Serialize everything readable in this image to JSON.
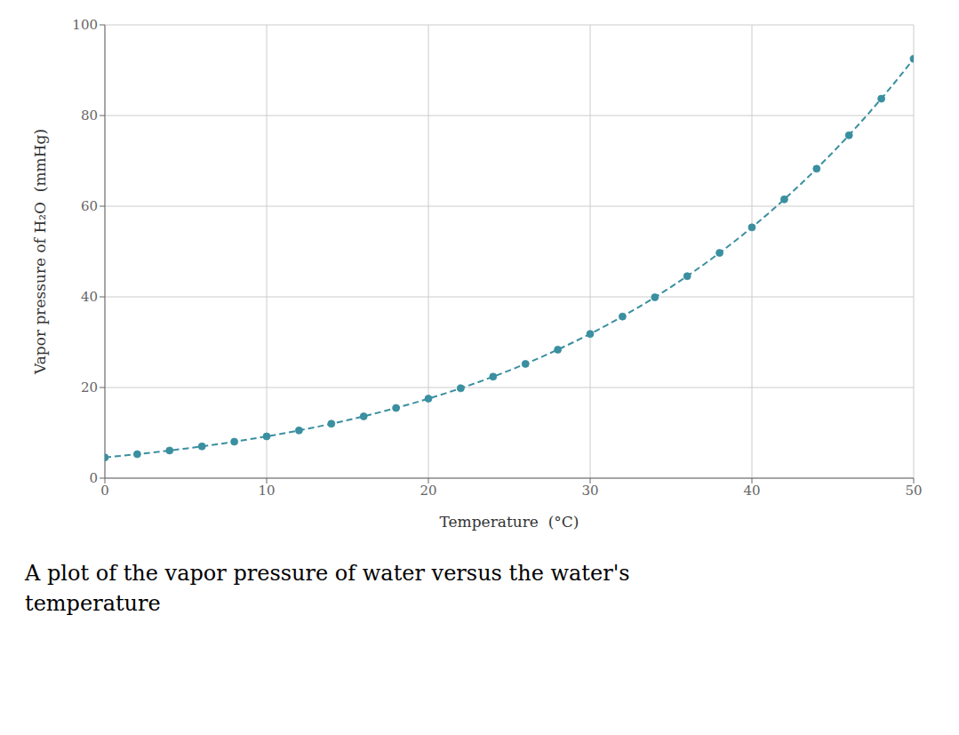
{
  "chart_data": {
    "type": "line",
    "caption": [
      "A plot of the vapor pressure of water versus the water's",
      "temperature"
    ],
    "x_label": "Temperature  (°C)",
    "y_label": "Vapor pressure of H₂O  (mmHg)",
    "x": [
      0,
      1,
      2,
      3,
      4,
      5,
      6,
      7,
      8,
      9,
      10,
      11,
      12,
      13,
      14,
      15,
      16,
      17,
      18,
      19,
      20,
      21,
      22,
      23,
      24,
      25,
      26,
      27,
      28,
      29,
      30,
      31,
      32,
      33,
      34,
      35,
      36,
      37,
      38,
      39,
      40,
      41,
      42,
      43,
      44,
      45,
      46,
      47,
      48,
      49,
      50
    ],
    "values": [
      4.58,
      4.93,
      5.29,
      5.69,
      6.1,
      6.54,
      7.01,
      7.51,
      8.04,
      8.61,
      9.21,
      9.84,
      10.52,
      11.23,
      12.0,
      12.79,
      13.63,
      14.53,
      15.48,
      16.48,
      17.54,
      18.65,
      19.83,
      21.07,
      22.38,
      23.76,
      25.21,
      26.74,
      28.35,
      30.04,
      31.82,
      33.7,
      35.66,
      37.73,
      39.9,
      42.18,
      44.56,
      47.07,
      49.69,
      52.44,
      55.32,
      58.34,
      61.5,
      64.8,
      68.26,
      71.88,
      75.65,
      79.6,
      83.71,
      88.02,
      92.51
    ],
    "color": "#3a8fa0",
    "marker": "circle",
    "line_style": "dashed",
    "xlim": [
      0,
      50
    ],
    "ylim": [
      0,
      100
    ],
    "xticks": [
      0,
      10,
      20,
      30,
      40,
      50
    ],
    "yticks": [
      0,
      20,
      40,
      60,
      80,
      100
    ],
    "grid": true
  }
}
